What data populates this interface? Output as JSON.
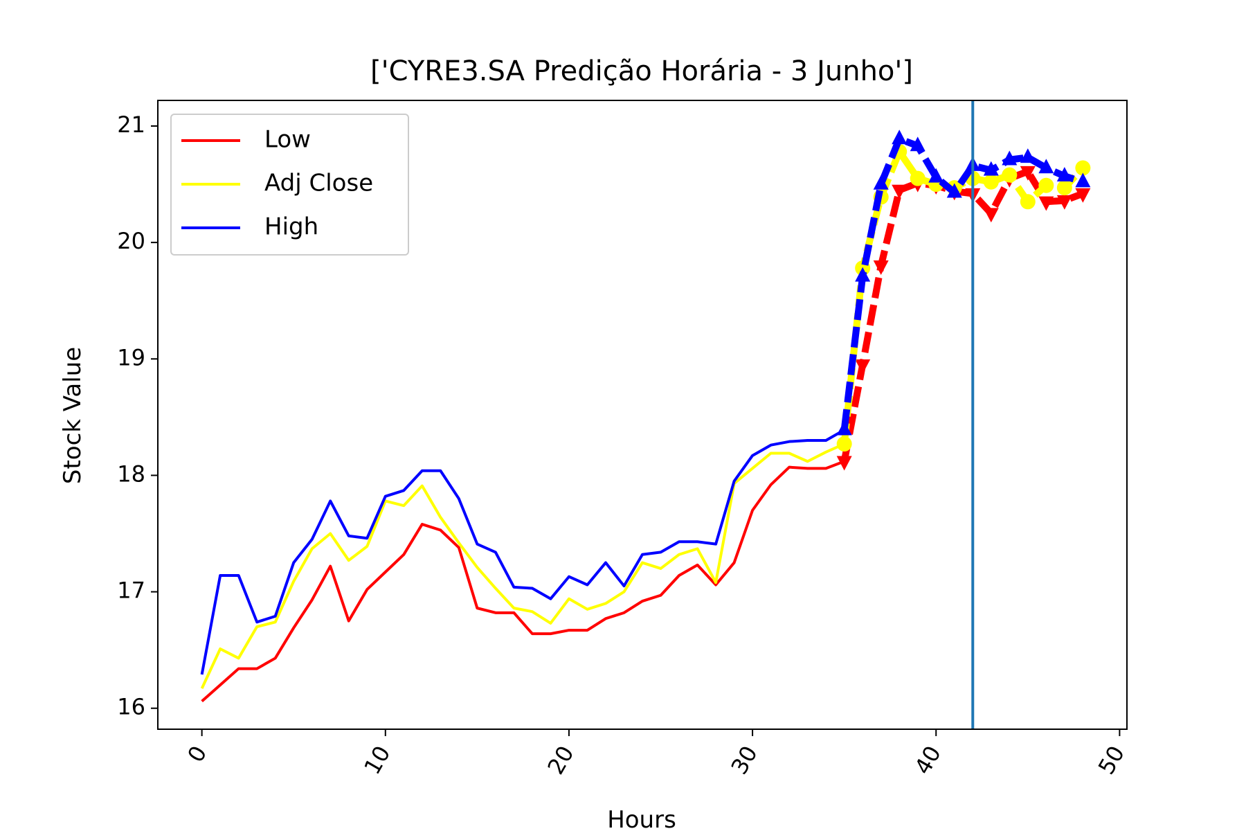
{
  "chart_data": {
    "type": "line",
    "title": "['CYRE3.SA Predição Horária - 3 Junho']",
    "xlabel": "Hours",
    "ylabel": "Stock Value",
    "xlim": [
      -2.4,
      50.4
    ],
    "ylim": [
      15.82,
      21.22
    ],
    "xticks": [
      0,
      10,
      20,
      30,
      40,
      50
    ],
    "yticks": [
      16,
      17,
      18,
      19,
      20,
      21
    ],
    "grid": false,
    "legend": {
      "placement": "top-left",
      "entries": [
        "Low",
        "Adj Close",
        "High"
      ]
    },
    "vline": {
      "x": 42,
      "color": "#1f77b4"
    },
    "series": [
      {
        "name": "Low",
        "color": "#ff0000",
        "x": [
          0,
          1,
          2,
          3,
          4,
          5,
          6,
          7,
          8,
          9,
          10,
          11,
          12,
          13,
          14,
          15,
          16,
          17,
          18,
          19,
          20,
          21,
          22,
          23,
          24,
          25,
          26,
          27,
          28,
          29,
          30,
          31,
          32,
          33,
          34,
          35
        ],
        "values": [
          16.06,
          16.2,
          16.34,
          16.34,
          16.43,
          16.69,
          16.93,
          17.22,
          16.75,
          17.02,
          17.17,
          17.32,
          17.58,
          17.53,
          17.38,
          16.86,
          16.82,
          16.82,
          16.64,
          16.64,
          16.67,
          16.67,
          16.77,
          16.82,
          16.92,
          16.97,
          17.14,
          17.23,
          17.06,
          17.25,
          17.7,
          17.92,
          18.07,
          18.06,
          18.06,
          18.12
        ]
      },
      {
        "name": "Adj Close",
        "color": "#ffff00",
        "x": [
          0,
          1,
          2,
          3,
          4,
          5,
          6,
          7,
          8,
          9,
          10,
          11,
          12,
          13,
          14,
          15,
          16,
          17,
          18,
          19,
          20,
          21,
          22,
          23,
          24,
          25,
          26,
          27,
          28,
          29,
          30,
          31,
          32,
          33,
          34,
          35
        ],
        "values": [
          16.17,
          16.51,
          16.43,
          16.7,
          16.74,
          17.09,
          17.37,
          17.5,
          17.27,
          17.39,
          17.78,
          17.74,
          17.91,
          17.64,
          17.42,
          17.21,
          17.03,
          16.86,
          16.83,
          16.73,
          16.94,
          16.85,
          16.9,
          17.0,
          17.25,
          17.2,
          17.32,
          17.37,
          17.08,
          17.93,
          18.06,
          18.19,
          18.19,
          18.12,
          18.2,
          18.27
        ]
      },
      {
        "name": "High",
        "color": "#0000ff",
        "x": [
          0,
          1,
          2,
          3,
          4,
          5,
          6,
          7,
          8,
          9,
          10,
          11,
          12,
          13,
          14,
          15,
          16,
          17,
          18,
          19,
          20,
          21,
          22,
          23,
          24,
          25,
          26,
          27,
          28,
          29,
          30,
          31,
          32,
          33,
          34,
          35
        ],
        "values": [
          16.29,
          17.14,
          17.14,
          16.74,
          16.79,
          17.25,
          17.45,
          17.78,
          17.48,
          17.46,
          17.82,
          17.87,
          18.04,
          18.04,
          17.8,
          17.41,
          17.34,
          17.04,
          17.03,
          16.94,
          17.13,
          17.06,
          17.25,
          17.05,
          17.32,
          17.34,
          17.43,
          17.43,
          17.41,
          17.95,
          18.17,
          18.26,
          18.29,
          18.3,
          18.3,
          18.39
        ]
      }
    ],
    "predicted_series": [
      {
        "name": "Low",
        "color": "#ff0000",
        "marker": "triangle-down",
        "x": [
          35,
          36,
          37,
          38,
          39,
          40,
          41,
          42,
          43,
          44,
          45,
          46,
          47,
          48
        ],
        "values": [
          18.12,
          18.95,
          19.8,
          20.45,
          20.51,
          20.49,
          20.44,
          20.42,
          20.25,
          20.55,
          20.61,
          20.35,
          20.36,
          20.42
        ]
      },
      {
        "name": "Adj Close",
        "color": "#ffff00",
        "marker": "circle",
        "x": [
          35,
          36,
          37,
          38,
          39,
          40,
          41,
          42,
          43,
          44,
          45,
          46,
          47,
          48
        ],
        "values": [
          18.27,
          19.78,
          20.39,
          20.78,
          20.55,
          20.5,
          20.47,
          20.55,
          20.52,
          20.58,
          20.35,
          20.49,
          20.47,
          20.64
        ]
      },
      {
        "name": "High",
        "color": "#0000ff",
        "marker": "triangle-up",
        "x": [
          35,
          36,
          37,
          38,
          39,
          40,
          41,
          42,
          43,
          44,
          45,
          46,
          47,
          48
        ],
        "values": [
          18.39,
          19.71,
          20.5,
          20.89,
          20.83,
          20.56,
          20.43,
          20.66,
          20.62,
          20.71,
          20.73,
          20.64,
          20.57,
          20.52
        ]
      }
    ]
  }
}
